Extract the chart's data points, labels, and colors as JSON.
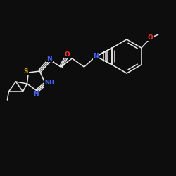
{
  "background": "#0d0d0d",
  "bond_color": "#e8e8e8",
  "atom_colors": {
    "N": "#4466ff",
    "O": "#ff3333",
    "S": "#ddaa00",
    "C": "#e8e8e8"
  },
  "font_size_atom": 6.5,
  "lw": 1.1
}
